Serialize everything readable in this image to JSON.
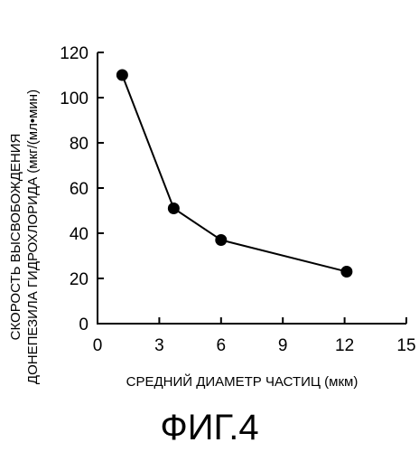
{
  "chart_data": {
    "type": "line",
    "title": "",
    "xlabel": "СРЕДНИЙ ДИАМЕТР ЧАСТИЦ (мкм)",
    "ylabel_lines": [
      "СКОРОСТЬ ВЫСВОБОЖДЕНИЯ",
      "ДОНЕПЕЗИЛА ГИДРОХЛОРИДА (мкг/(мл•мин)"
    ],
    "xlim": [
      0,
      15
    ],
    "ylim": [
      0,
      120
    ],
    "x_ticks": [
      0,
      3,
      6,
      9,
      12,
      15
    ],
    "y_ticks": [
      0,
      20,
      40,
      60,
      80,
      100,
      120
    ],
    "grid": false,
    "series": [
      {
        "x": [
          1.2,
          3.7,
          6.0,
          12.1
        ],
        "y": [
          110,
          51,
          37,
          23
        ]
      }
    ]
  },
  "caption": "ФИГ.4"
}
